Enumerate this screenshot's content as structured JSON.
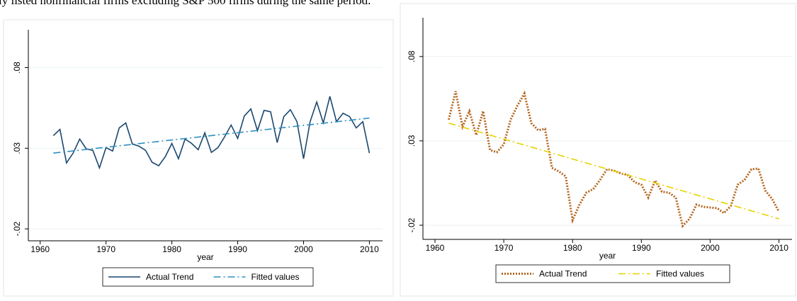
{
  "header_text": "ly listed nonfinancial firms excluding S&P 500 firms during the same period.",
  "chart_data": [
    {
      "type": "line",
      "xlabel": "year",
      "grid": true,
      "legend": "bottom",
      "xlim": [
        1958.2,
        2012
      ],
      "xticks": [
        1960,
        1970,
        1980,
        1990,
        2000,
        2010
      ],
      "ylim": [
        -0.0274,
        0.1035
      ],
      "yticks": [
        {
          "value": -0.02,
          "label": "-.02"
        },
        {
          "value": 0.03,
          "label": ".03"
        },
        {
          "value": 0.08,
          "label": ".08"
        }
      ],
      "x": [
        1962,
        1963,
        1964,
        1965,
        1966,
        1967,
        1968,
        1969,
        1970,
        1971,
        1972,
        1973,
        1974,
        1975,
        1976,
        1977,
        1978,
        1979,
        1980,
        1981,
        1982,
        1983,
        1984,
        1985,
        1986,
        1987,
        1988,
        1989,
        1990,
        1991,
        1992,
        1993,
        1994,
        1995,
        1996,
        1997,
        1998,
        1999,
        2000,
        2001,
        2002,
        2003,
        2004,
        2005,
        2006,
        2007,
        2008,
        2009,
        2010
      ],
      "series": [
        {
          "name": "Actual Trend",
          "color": "#1a476f",
          "line_style": "solid",
          "values": [
            0.0378,
            0.0417,
            0.0209,
            0.027,
            0.0357,
            0.0296,
            0.0287,
            0.0178,
            0.0304,
            0.0283,
            0.0426,
            0.0457,
            0.0326,
            0.0313,
            0.0287,
            0.0213,
            0.0191,
            0.0248,
            0.033,
            0.0235,
            0.0357,
            0.033,
            0.0291,
            0.0396,
            0.0274,
            0.0304,
            0.037,
            0.0444,
            0.0361,
            0.05,
            0.0544,
            0.0409,
            0.0535,
            0.0526,
            0.0335,
            0.0496,
            0.0539,
            0.0465,
            0.0235,
            0.0465,
            0.0587,
            0.0457,
            0.0622,
            0.0465,
            0.0517,
            0.0496,
            0.0426,
            0.0465,
            0.027
          ]
        },
        {
          "name": "Fitted values",
          "color": "#2e8fbf",
          "line_style": "dash-dot",
          "x": [
            1962,
            2010
          ],
          "values": [
            0.027,
            0.0487
          ]
        }
      ]
    },
    {
      "type": "line",
      "xlabel": "year",
      "grid": true,
      "legend": "bottom",
      "xlim": [
        1958.25,
        2011.9
      ],
      "xticks": [
        1960,
        1970,
        1980,
        1990,
        2000,
        2010
      ],
      "ylim": [
        -0.0284,
        0.103
      ],
      "yticks": [
        {
          "value": -0.02,
          "label": "-.02"
        },
        {
          "value": 0.03,
          "label": ".03"
        },
        {
          "value": 0.08,
          "label": ".08"
        }
      ],
      "x": [
        1962,
        1963,
        1964,
        1965,
        1966,
        1967,
        1968,
        1969,
        1970,
        1971,
        1972,
        1973,
        1974,
        1975,
        1976,
        1977,
        1978,
        1979,
        1980,
        1981,
        1982,
        1983,
        1984,
        1985,
        1986,
        1987,
        1988,
        1989,
        1990,
        1991,
        1992,
        1993,
        1994,
        1995,
        1996,
        1997,
        1998,
        1999,
        2000,
        2001,
        2002,
        2003,
        2004,
        2005,
        2006,
        2007,
        2008,
        2009,
        2010
      ],
      "series": [
        {
          "name": "Actual Trend",
          "color": "#b5651d",
          "line_style": "dotted",
          "values": [
            0.0426,
            0.0594,
            0.0384,
            0.0476,
            0.0334,
            0.0476,
            0.0245,
            0.0233,
            0.0279,
            0.0426,
            0.051,
            0.0581,
            0.0405,
            0.0363,
            0.0371,
            0.014,
            0.0119,
            0.009,
            -0.017,
            -0.0078,
            -0.0007,
            0.0014,
            0.0069,
            0.0132,
            0.0124,
            0.0107,
            0.0098,
            0.0056,
            0.004,
            -0.0036,
            0.0065,
            -0.0002,
            -0.0007,
            -0.0036,
            -0.0204,
            -0.0162,
            -0.0078,
            -0.0091,
            -0.0095,
            -0.0099,
            -0.0128,
            -0.0086,
            0.004,
            0.0069,
            0.0132,
            0.0136,
            0.0006,
            -0.0044,
            -0.012
          ]
        },
        {
          "name": "Fitted values",
          "color": "#e6d200",
          "line_style": "dash-dot",
          "x": [
            1962,
            2010
          ],
          "values": [
            0.0405,
            -0.0162
          ]
        }
      ]
    }
  ]
}
